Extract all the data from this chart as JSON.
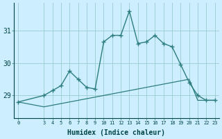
{
  "xlabel": "Humidex (Indice chaleur)",
  "x_values": [
    0,
    3,
    4,
    5,
    6,
    7,
    8,
    9,
    10,
    11,
    12,
    13,
    14,
    15,
    16,
    17,
    18,
    19,
    20,
    21,
    22,
    23
  ],
  "line1_y": [
    28.8,
    29.0,
    29.15,
    29.3,
    29.75,
    29.5,
    29.25,
    29.2,
    30.65,
    30.85,
    30.85,
    31.6,
    30.6,
    30.65,
    30.85,
    30.6,
    30.5,
    29.95,
    29.4,
    29.0,
    28.85,
    28.85
  ],
  "line2_y": [
    28.8,
    28.65,
    28.7,
    28.75,
    28.8,
    28.85,
    28.9,
    28.95,
    29.0,
    29.05,
    29.1,
    29.15,
    29.2,
    29.25,
    29.3,
    29.35,
    29.4,
    29.45,
    29.5,
    28.85,
    28.85,
    28.85
  ],
  "line_color": "#2d7d7d",
  "bg_color": "#cceeff",
  "grid_color": "#99cccc",
  "ylim_min": 28.3,
  "ylim_max": 31.85,
  "yticks": [
    29,
    30,
    31
  ],
  "xticks": [
    0,
    3,
    4,
    5,
    6,
    7,
    8,
    9,
    10,
    11,
    12,
    13,
    14,
    15,
    16,
    17,
    18,
    19,
    20,
    21,
    22,
    23
  ],
  "marker1": "+",
  "marker2": "None",
  "lw1": 1.0,
  "lw2": 0.9
}
